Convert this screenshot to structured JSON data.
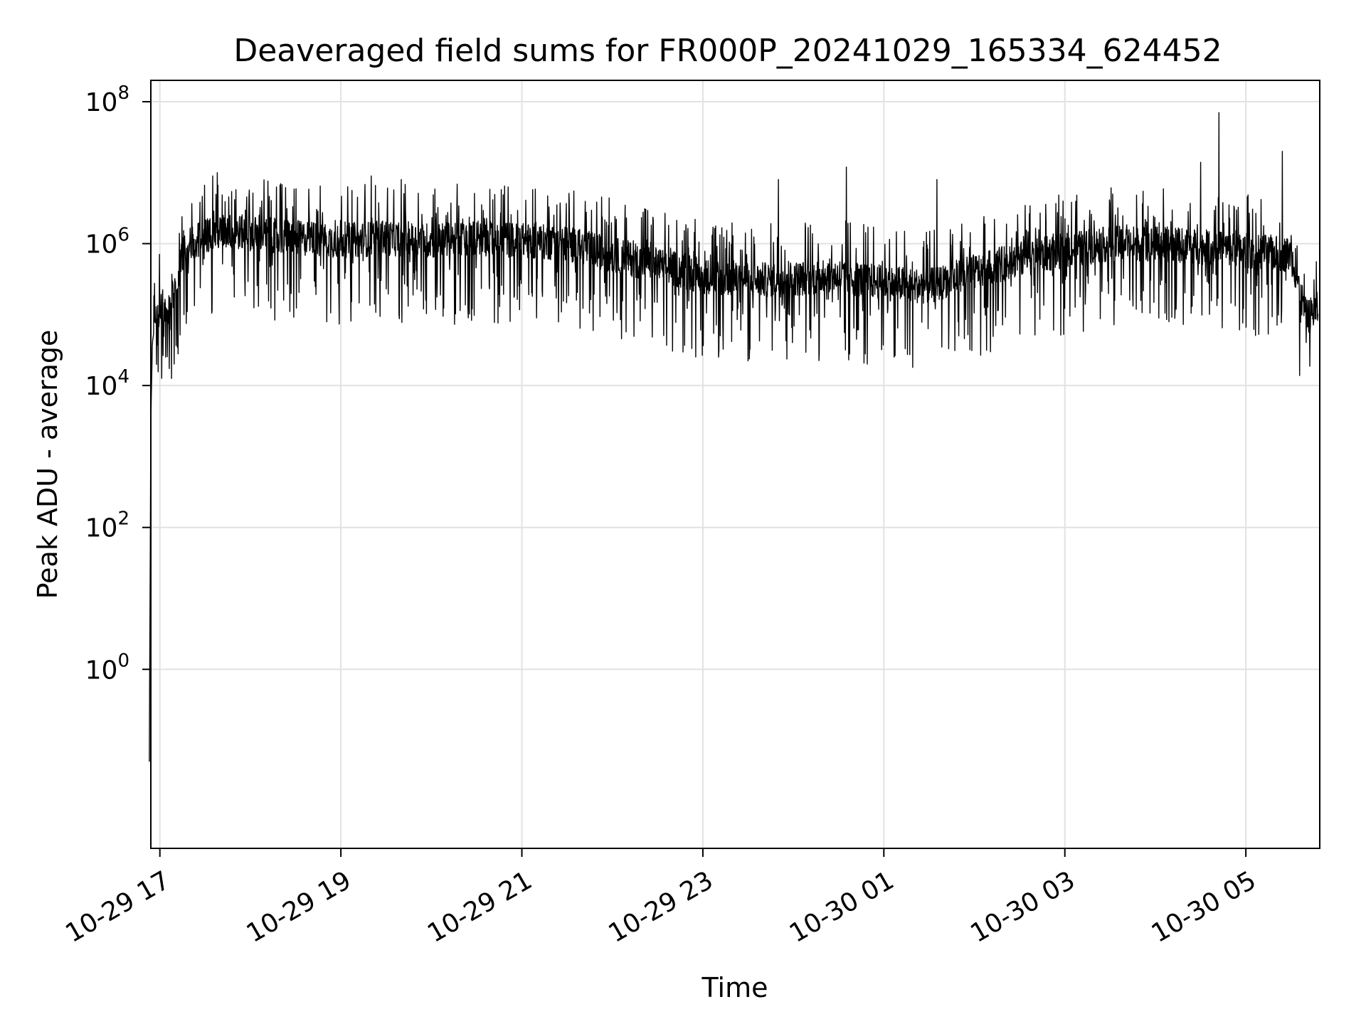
{
  "chart_data": {
    "type": "line",
    "title": "Deaveraged field sums for FR000P_20241029_165334_624452",
    "xlabel": "Time",
    "ylabel": "Peak ADU - average",
    "yscale": "log",
    "ylim": [
      0.003,
      200000000
    ],
    "xlim": [
      "2024-10-29 16:54",
      "2024-10-30 05:49"
    ],
    "grid": true,
    "x_ticks": [
      {
        "value": "2024-10-29 17:00",
        "label": "10-29 17"
      },
      {
        "value": "2024-10-29 19:00",
        "label": "10-29 19"
      },
      {
        "value": "2024-10-29 21:00",
        "label": "10-29 21"
      },
      {
        "value": "2024-10-29 23:00",
        "label": "10-29 23"
      },
      {
        "value": "2024-10-30 01:00",
        "label": "10-30 01"
      },
      {
        "value": "2024-10-30 03:00",
        "label": "10-30 03"
      },
      {
        "value": "2024-10-30 05:00",
        "label": "10-30 05"
      }
    ],
    "y_ticks": [
      {
        "value": 1,
        "base": "10",
        "exp": "0"
      },
      {
        "value": 100,
        "base": "10",
        "exp": "2"
      },
      {
        "value": 10000,
        "base": "10",
        "exp": "4"
      },
      {
        "value": 1000000,
        "base": "10",
        "exp": "6"
      },
      {
        "value": 100000000,
        "base": "10",
        "exp": "8"
      }
    ],
    "series": [
      {
        "color": "#000000",
        "points": [
          [
            "2024-10-29 16:53",
            0.05
          ],
          [
            "2024-10-29 16:54",
            3000
          ],
          [
            "2024-10-29 16:55",
            40000
          ],
          [
            "2024-10-29 16:57",
            80000
          ],
          [
            "2024-10-29 17:00",
            120000
          ],
          [
            "2024-10-29 17:05",
            90000
          ],
          [
            "2024-10-29 17:10",
            250000
          ],
          [
            "2024-10-29 17:15",
            700000
          ],
          [
            "2024-10-29 17:20",
            1000000
          ],
          [
            "2024-10-29 17:30",
            1300000
          ],
          [
            "2024-10-29 17:45",
            1500000
          ],
          [
            "2024-10-29 18:00",
            1400000
          ],
          [
            "2024-10-29 18:30",
            1200000
          ],
          [
            "2024-10-29 19:00",
            1100000
          ],
          [
            "2024-10-29 19:30",
            1200000
          ],
          [
            "2024-10-29 20:00",
            1100000
          ],
          [
            "2024-10-29 20:30",
            1200000
          ],
          [
            "2024-10-29 21:00",
            1100000
          ],
          [
            "2024-10-29 21:30",
            1000000
          ],
          [
            "2024-10-29 22:00",
            700000
          ],
          [
            "2024-10-29 22:30",
            500000
          ],
          [
            "2024-10-29 23:00",
            350000
          ],
          [
            "2024-10-29 23:30",
            300000
          ],
          [
            "2024-10-30 00:00",
            320000
          ],
          [
            "2024-10-30 00:30",
            350000
          ],
          [
            "2024-10-30 01:00",
            280000
          ],
          [
            "2024-10-30 01:30",
            250000
          ],
          [
            "2024-10-30 02:00",
            400000
          ],
          [
            "2024-10-30 02:30",
            600000
          ],
          [
            "2024-10-30 03:00",
            800000
          ],
          [
            "2024-10-30 03:30",
            1000000
          ],
          [
            "2024-10-30 04:00",
            1000000
          ],
          [
            "2024-10-30 04:30",
            900000
          ],
          [
            "2024-10-30 05:00",
            800000
          ],
          [
            "2024-10-30 05:30",
            700000
          ],
          [
            "2024-10-30 05:40",
            90000
          ],
          [
            "2024-10-30 05:48",
            120000
          ]
        ],
        "spikes": [
          [
            "2024-10-29 17:35",
            9000000
          ],
          [
            "2024-10-29 17:38",
            10000000
          ],
          [
            "2024-10-29 18:20",
            7000000
          ],
          [
            "2024-10-29 19:20",
            9000000
          ],
          [
            "2024-10-29 19:40",
            8000000
          ],
          [
            "2024-10-29 23:50",
            8000000
          ],
          [
            "2024-10-30 00:35",
            12000000
          ],
          [
            "2024-10-30 01:35",
            8000000
          ],
          [
            "2024-10-30 04:30",
            14000000
          ],
          [
            "2024-10-30 04:42",
            70000000
          ],
          [
            "2024-10-30 05:24",
            20000000
          ]
        ]
      }
    ]
  }
}
